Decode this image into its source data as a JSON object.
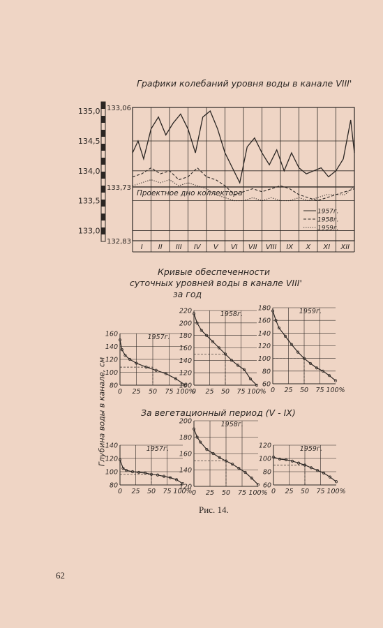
{
  "main_chart": {
    "title": "Графики колебаний уровня воды в канале VIII'",
    "y_ticks_left": [
      "135,0",
      "134,5",
      "134,0",
      "133,5",
      "133,0"
    ],
    "y_ticks_right": [
      "133,06",
      "133,73",
      "132,83"
    ],
    "months": [
      "I",
      "II",
      "III",
      "IV",
      "V",
      "VI",
      "VII",
      "VIII",
      "IX",
      "X",
      "XI",
      "XII"
    ],
    "design_line_label": "Проектное дно коллектора",
    "legend": [
      "1957г.",
      "1958г.",
      "1959г."
    ]
  },
  "annual_title": [
    "Кривые обеспеченности",
    "суточных уровней воды в канале VIII'",
    "за год"
  ],
  "veg_title": "За вегетационный период (V - IX)",
  "ylabel": "Глубина воды в канале, см",
  "x_ticks": [
    "0",
    "25",
    "50",
    "75",
    "100%"
  ],
  "caption": "Рис. 14.",
  "page_number": "62",
  "chart_data": [
    {
      "type": "line",
      "title": "Графики колебаний уровня воды в канале VIII'",
      "x_categories": [
        "I",
        "II",
        "III",
        "IV",
        "V",
        "VI",
        "VII",
        "VIII",
        "IX",
        "X",
        "XI",
        "XII"
      ],
      "ylim": [
        132.83,
        135.06
      ],
      "design_level": 133.73,
      "series": [
        {
          "name": "1957г.",
          "style": "solid",
          "x": [
            0,
            0.3,
            0.6,
            1.0,
            1.4,
            1.8,
            2.2,
            2.6,
            3.0,
            3.4,
            3.8,
            4.2,
            4.6,
            5.0,
            5.4,
            5.8,
            6.2,
            6.6,
            7.0,
            7.4,
            7.8,
            8.2,
            8.6,
            9.0,
            9.4,
            9.8,
            10.2,
            10.6,
            11.0,
            11.4,
            11.8,
            12.0
          ],
          "y": [
            134.3,
            134.5,
            134.2,
            134.7,
            134.9,
            134.6,
            134.8,
            134.95,
            134.7,
            134.3,
            134.9,
            135.0,
            134.7,
            134.3,
            134.05,
            133.8,
            134.4,
            134.55,
            134.3,
            134.1,
            134.35,
            134.0,
            134.3,
            134.05,
            133.95,
            134.0,
            134.05,
            133.9,
            134.0,
            134.2,
            134.85,
            134.3
          ]
        },
        {
          "name": "1958г.",
          "style": "dashed",
          "x": [
            0,
            0.5,
            1.0,
            1.5,
            2.0,
            2.5,
            3.0,
            3.5,
            4.0,
            4.5,
            5.0,
            5.5,
            6.0,
            6.5,
            7.0,
            7.5,
            8.0,
            8.5,
            9.0,
            9.5,
            10.0,
            10.5,
            11.0,
            11.5,
            12.0
          ],
          "y": [
            133.9,
            133.95,
            134.05,
            133.95,
            134.0,
            133.85,
            133.9,
            134.05,
            133.9,
            133.85,
            133.75,
            133.6,
            133.65,
            133.7,
            133.65,
            133.7,
            133.75,
            133.7,
            133.6,
            133.55,
            133.5,
            133.55,
            133.6,
            133.65,
            133.7
          ]
        },
        {
          "name": "1959г.",
          "style": "dotted",
          "x": [
            0,
            0.5,
            1.0,
            1.5,
            2.0,
            2.5,
            3.0,
            3.5,
            4.0,
            4.5,
            5.0,
            5.5,
            6.0,
            6.5,
            7.0,
            7.5,
            8.0,
            8.5,
            9.0,
            9.5,
            10.0,
            10.5,
            11.0,
            11.5,
            12.0
          ],
          "y": [
            133.75,
            133.8,
            133.85,
            133.8,
            133.85,
            133.75,
            133.8,
            133.75,
            133.7,
            133.6,
            133.55,
            133.5,
            133.5,
            133.55,
            133.5,
            133.55,
            133.5,
            133.5,
            133.55,
            133.5,
            133.55,
            133.6,
            133.6,
            133.6,
            133.75
          ]
        }
      ]
    },
    {
      "type": "line",
      "group": "за год",
      "label": "1957г.",
      "y_ticks": [
        80,
        100,
        120,
        140,
        160
      ],
      "ylim": [
        80,
        160
      ],
      "xlim": [
        0,
        100
      ],
      "x": [
        0,
        3,
        8,
        15,
        25,
        40,
        55,
        70,
        85,
        100
      ],
      "y": [
        150,
        135,
        126,
        120,
        114,
        108,
        103,
        98,
        90,
        80
      ]
    },
    {
      "type": "line",
      "group": "за год",
      "label": "1958г.",
      "y_ticks": [
        100,
        120,
        140,
        160,
        180,
        200,
        220
      ],
      "ylim": [
        100,
        220
      ],
      "xlim": [
        0,
        100
      ],
      "x": [
        0,
        5,
        12,
        20,
        30,
        40,
        50,
        60,
        70,
        80,
        90,
        100
      ],
      "y": [
        215,
        200,
        188,
        180,
        170,
        160,
        150,
        140,
        132,
        125,
        110,
        100
      ]
    },
    {
      "type": "line",
      "group": "за год",
      "label": "1959г.",
      "y_ticks": [
        60,
        80,
        100,
        120,
        140,
        160,
        180
      ],
      "ylim": [
        60,
        180
      ],
      "xlim": [
        0,
        100
      ],
      "x": [
        0,
        5,
        10,
        20,
        30,
        40,
        50,
        60,
        70,
        80,
        90,
        100
      ],
      "y": [
        175,
        160,
        148,
        135,
        122,
        110,
        100,
        92,
        85,
        80,
        73,
        65
      ]
    },
    {
      "type": "line",
      "group": "за вегетационный период",
      "label": "1957г.",
      "y_ticks": [
        80,
        100,
        120,
        140
      ],
      "ylim": [
        80,
        140
      ],
      "xlim": [
        0,
        100
      ],
      "x": [
        0,
        5,
        10,
        20,
        30,
        40,
        50,
        60,
        70,
        80,
        90,
        100
      ],
      "y": [
        118,
        105,
        102,
        100,
        99,
        98,
        96,
        95,
        93,
        91,
        88,
        82
      ]
    },
    {
      "type": "line",
      "group": "за вегетационный период",
      "label": "1958г.",
      "y_ticks": [
        120,
        140,
        160,
        180,
        200
      ],
      "ylim": [
        120,
        200
      ],
      "xlim": [
        0,
        100
      ],
      "x": [
        0,
        5,
        10,
        20,
        30,
        40,
        50,
        60,
        70,
        80,
        90,
        100
      ],
      "y": [
        190,
        180,
        174,
        165,
        160,
        155,
        151,
        147,
        142,
        137,
        130,
        122
      ]
    },
    {
      "type": "line",
      "group": "за вегетационный период",
      "label": "1959г.",
      "y_ticks": [
        60,
        80,
        100,
        120
      ],
      "ylim": [
        60,
        120
      ],
      "xlim": [
        0,
        100
      ],
      "x": [
        0,
        10,
        20,
        30,
        40,
        50,
        60,
        70,
        80,
        90,
        100
      ],
      "y": [
        102,
        99,
        98,
        96,
        93,
        90,
        86,
        82,
        78,
        72,
        65
      ]
    }
  ]
}
